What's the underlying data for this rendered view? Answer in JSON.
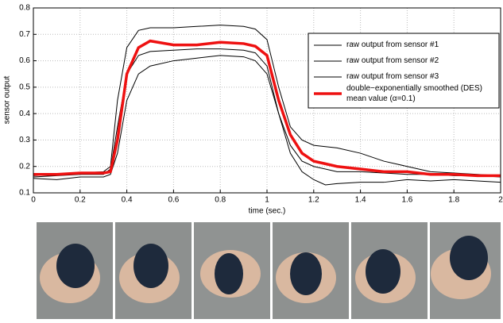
{
  "chart_data": {
    "type": "line",
    "xlabel": "time (sec.)",
    "ylabel": "sensor output",
    "x": [
      0,
      0.1,
      0.2,
      0.3,
      0.33,
      0.36,
      0.4,
      0.45,
      0.5,
      0.6,
      0.7,
      0.8,
      0.9,
      0.95,
      1.0,
      1.05,
      1.1,
      1.15,
      1.2,
      1.25,
      1.3,
      1.4,
      1.5,
      1.6,
      1.7,
      1.8,
      1.9,
      2.0
    ],
    "series": [
      {
        "name": "raw output from sensor #1",
        "color": "#000000",
        "width": 1,
        "values": [
          0.165,
          0.17,
          0.175,
          0.18,
          0.2,
          0.45,
          0.65,
          0.715,
          0.725,
          0.725,
          0.73,
          0.735,
          0.73,
          0.72,
          0.68,
          0.5,
          0.35,
          0.3,
          0.28,
          0.275,
          0.27,
          0.25,
          0.22,
          0.2,
          0.18,
          0.175,
          0.17,
          0.165
        ]
      },
      {
        "name": "raw output from sensor #2",
        "color": "#000000",
        "width": 1,
        "values": [
          0.16,
          0.165,
          0.17,
          0.17,
          0.19,
          0.35,
          0.55,
          0.62,
          0.635,
          0.64,
          0.645,
          0.645,
          0.64,
          0.63,
          0.58,
          0.4,
          0.28,
          0.22,
          0.2,
          0.19,
          0.18,
          0.18,
          0.175,
          0.17,
          0.17,
          0.165,
          0.165,
          0.16
        ]
      },
      {
        "name": "raw output from sensor #3",
        "color": "#000000",
        "width": 1,
        "values": [
          0.155,
          0.15,
          0.16,
          0.16,
          0.17,
          0.25,
          0.45,
          0.55,
          0.58,
          0.6,
          0.61,
          0.62,
          0.615,
          0.6,
          0.55,
          0.4,
          0.25,
          0.18,
          0.15,
          0.13,
          0.135,
          0.14,
          0.14,
          0.15,
          0.145,
          0.15,
          0.145,
          0.14
        ]
      },
      {
        "name": "double−exponentially smoothed (DES) mean value (α=0.1)",
        "color": "#ee1111",
        "width": 3.5,
        "values": [
          0.17,
          0.17,
          0.175,
          0.175,
          0.18,
          0.3,
          0.55,
          0.65,
          0.675,
          0.66,
          0.66,
          0.67,
          0.665,
          0.655,
          0.62,
          0.45,
          0.32,
          0.25,
          0.22,
          0.21,
          0.2,
          0.19,
          0.18,
          0.18,
          0.17,
          0.17,
          0.165,
          0.165
        ]
      }
    ],
    "xlim": [
      0,
      2
    ],
    "xticks": [
      0,
      0.2,
      0.4,
      0.6,
      0.8,
      1,
      1.2,
      1.4,
      1.6,
      1.8,
      2
    ],
    "ylim": [
      0.1,
      0.8
    ],
    "yticks": [
      0.1,
      0.2,
      0.3,
      0.4,
      0.5,
      0.6,
      0.7,
      0.8
    ],
    "grid": true,
    "legend": "upper right"
  }
}
